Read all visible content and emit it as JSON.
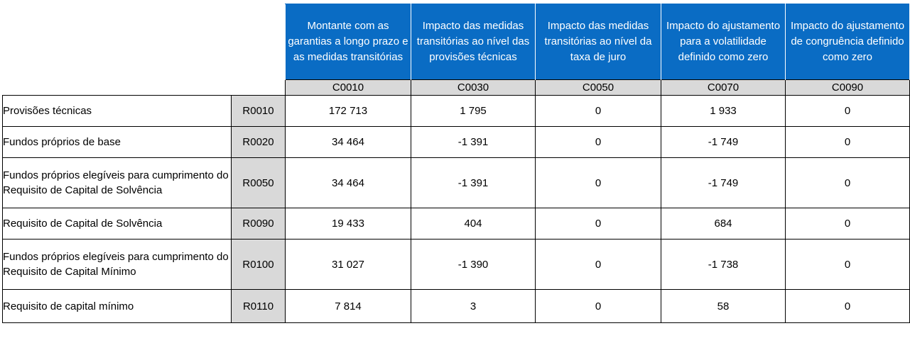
{
  "columns": [
    {
      "header": "Montante com as garantias a longo prazo e as medidas transitórias",
      "code": "C0010"
    },
    {
      "header": "Impacto das medidas transitórias ao nível das provisões técnicas",
      "code": "C0030"
    },
    {
      "header": "Impacto das medidas transitórias ao nível da taxa de juro",
      "code": "C0050"
    },
    {
      "header": "Impacto do ajustamento para a volatilidade definido como zero",
      "code": "C0070"
    },
    {
      "header": "Impacto do ajustamento de congruência definido como zero",
      "code": "C0090"
    }
  ],
  "rows": [
    {
      "label": "Provisões técnicas",
      "code": "R0010",
      "values": [
        "172 713",
        "1 795",
        "0",
        "1 933",
        "0"
      ]
    },
    {
      "label": "Fundos próprios de base",
      "code": "R0020",
      "values": [
        "34 464",
        "-1 391",
        "0",
        "-1 749",
        "0"
      ]
    },
    {
      "label": "Fundos próprios elegíveis para cumprimento do Requisito de Capital de Solvência",
      "code": "R0050",
      "values": [
        "34 464",
        "-1 391",
        "0",
        "-1 749",
        "0"
      ]
    },
    {
      "label": "Requisito de Capital de Solvência",
      "code": "R0090",
      "values": [
        "19 433",
        "404",
        "0",
        "684",
        "0"
      ]
    },
    {
      "label": "Fundos próprios elegíveis para cumprimento do Requisito de Capital Mínimo",
      "code": "R0100",
      "values": [
        "31 027",
        "-1 390",
        "0",
        "-1 738",
        "0"
      ]
    },
    {
      "label": "Requisito de capital mínimo",
      "code": "R0110",
      "values": [
        "7 814",
        "3",
        "0",
        "58",
        "0"
      ]
    }
  ]
}
